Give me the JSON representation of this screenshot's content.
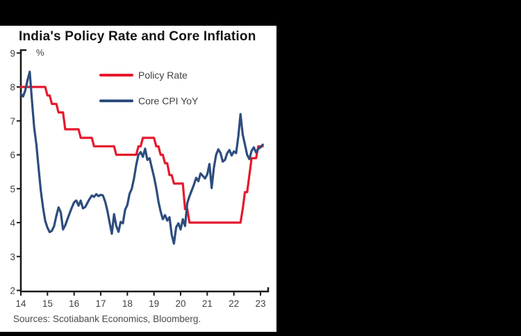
{
  "window": {
    "background_color": "#000000",
    "panel_background_color": "#ffffff"
  },
  "chart_data": {
    "type": "line",
    "title": "India's Policy Rate and Core Inflation",
    "unit_label": "%",
    "xlabel": "",
    "ylabel": "%",
    "ylim": [
      2,
      9
    ],
    "y_ticks": [
      2,
      3,
      4,
      5,
      6,
      7,
      8,
      9
    ],
    "x_tick_labels": [
      "14",
      "15",
      "16",
      "17",
      "18",
      "19",
      "20",
      "21",
      "22",
      "23"
    ],
    "frequency": "monthly",
    "grid": "off",
    "legend_position": "inside-top-left",
    "axis_color": "#1a1a1a",
    "tick_label_color": "#414042",
    "series": [
      {
        "name": "Policy Rate",
        "color": "#e6192d",
        "values": [
          8.0,
          8.0,
          8.0,
          8.0,
          8.0,
          8.0,
          8.0,
          8.0,
          8.0,
          8.0,
          8.0,
          8.0,
          7.75,
          7.75,
          7.5,
          7.5,
          7.5,
          7.25,
          7.25,
          7.25,
          6.75,
          6.75,
          6.75,
          6.75,
          6.75,
          6.75,
          6.75,
          6.5,
          6.5,
          6.5,
          6.5,
          6.5,
          6.5,
          6.25,
          6.25,
          6.25,
          6.25,
          6.25,
          6.25,
          6.25,
          6.25,
          6.25,
          6.25,
          6.0,
          6.0,
          6.0,
          6.0,
          6.0,
          6.0,
          6.0,
          6.0,
          6.0,
          6.0,
          6.25,
          6.25,
          6.5,
          6.5,
          6.5,
          6.5,
          6.5,
          6.5,
          6.25,
          6.25,
          6.0,
          6.0,
          5.75,
          5.75,
          5.4,
          5.4,
          5.15,
          5.15,
          5.15,
          5.15,
          5.15,
          4.4,
          4.4,
          4.0,
          4.0,
          4.0,
          4.0,
          4.0,
          4.0,
          4.0,
          4.0,
          4.0,
          4.0,
          4.0,
          4.0,
          4.0,
          4.0,
          4.0,
          4.0,
          4.0,
          4.0,
          4.0,
          4.0,
          4.0,
          4.0,
          4.0,
          4.0,
          4.4,
          4.9,
          4.9,
          5.4,
          5.9,
          5.9,
          5.9,
          6.25,
          6.25,
          6.25
        ]
      },
      {
        "name": "Core CPI YoY",
        "color": "#2d4d7d",
        "values": [
          7.8,
          7.72,
          7.9,
          8.2,
          8.45,
          7.6,
          6.8,
          6.3,
          5.6,
          4.95,
          4.45,
          4.05,
          3.85,
          3.72,
          3.76,
          3.9,
          4.2,
          4.45,
          4.3,
          3.8,
          3.92,
          4.1,
          4.28,
          4.45,
          4.6,
          4.65,
          4.5,
          4.65,
          4.42,
          4.46,
          4.58,
          4.7,
          4.8,
          4.76,
          4.84,
          4.78,
          4.82,
          4.8,
          4.62,
          4.35,
          4.0,
          3.67,
          4.25,
          3.9,
          3.73,
          4.02,
          3.98,
          4.38,
          4.52,
          4.85,
          5.0,
          5.3,
          5.7,
          6.0,
          6.08,
          5.94,
          6.18,
          5.85,
          5.9,
          5.62,
          5.35,
          5.02,
          4.62,
          4.33,
          4.1,
          4.22,
          4.06,
          4.16,
          3.64,
          3.38,
          3.86,
          3.98,
          3.8,
          4.1,
          3.9,
          4.58,
          4.78,
          4.95,
          5.12,
          5.32,
          5.22,
          5.45,
          5.38,
          5.3,
          5.42,
          5.73,
          5.02,
          5.62,
          6.0,
          6.16,
          6.05,
          5.8,
          5.85,
          6.05,
          6.14,
          5.98,
          6.1,
          6.05,
          6.55,
          7.2,
          6.6,
          6.3,
          6.0,
          5.87,
          6.12,
          6.22,
          6.07,
          6.17,
          6.22,
          6.3
        ]
      }
    ],
    "source_note": "Sources: Scotiabank Economics, Bloomberg."
  }
}
